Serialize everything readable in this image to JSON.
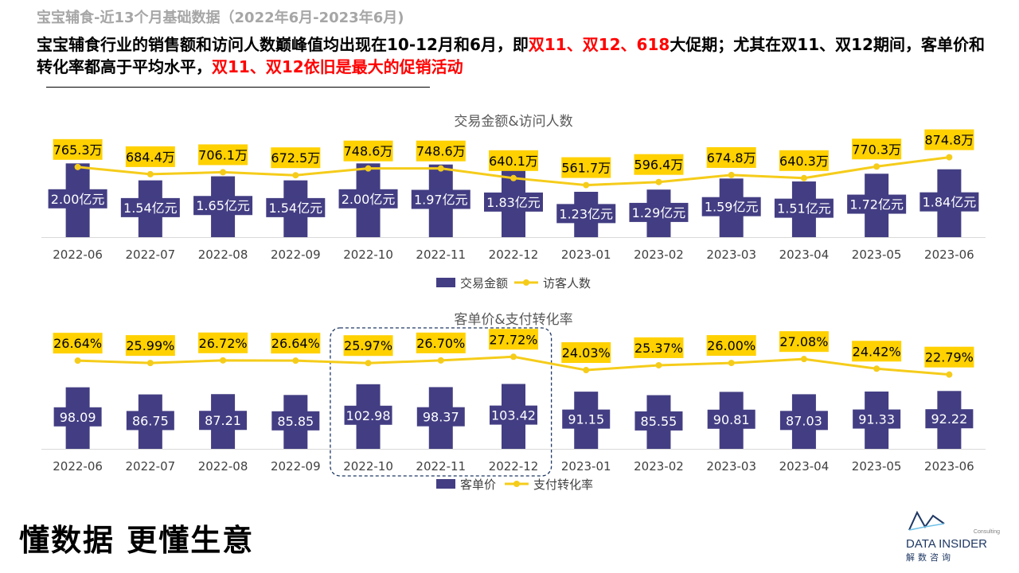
{
  "page": {
    "subtitle": "宝宝辅食-近13个月基础数据（2022年6月-2023年6月)",
    "headline": {
      "part1": "宝宝辅食行业的销售额和访问人数巅峰值均出现在10-12月和6月，即",
      "hl1": "双11、双12、618",
      "part2": "大促期；尤其在双11、双12期间，客单价和转化率都高于平均水平，",
      "hl2": "双11、双12依旧是最大的促销活动"
    },
    "slogan": "懂数据 更懂生意"
  },
  "logo": {
    "brand": "DATA INSIDER",
    "tagline": "Consulting",
    "cn": "解数咨询"
  },
  "colors": {
    "bar": "#433e83",
    "line": "#f5cc1a",
    "label_box": "#ffd100",
    "highlight": "#ff0000",
    "axis_text": "#404040",
    "logo": "#1f3864",
    "logo_accent": "#6fc0e8"
  },
  "chart_data": [
    {
      "type": "bar+line",
      "title": "交易金额&访问人数",
      "categories": [
        "2022-06",
        "2022-07",
        "2022-08",
        "2022-09",
        "2022-10",
        "2022-11",
        "2022-12",
        "2023-01",
        "2023-02",
        "2023-03",
        "2023-04",
        "2023-05",
        "2023-06"
      ],
      "series": [
        {
          "name": "交易金额",
          "type": "bar",
          "values": [
            2.0,
            1.54,
            1.65,
            1.54,
            2.0,
            1.97,
            1.83,
            1.23,
            1.29,
            1.59,
            1.51,
            1.72,
            1.84
          ],
          "labels": [
            "2.00亿元",
            "1.54亿元",
            "1.65亿元",
            "1.54亿元",
            "2.00亿元",
            "1.97亿元",
            "1.83亿元",
            "1.23亿元",
            "1.29亿元",
            "1.59亿元",
            "1.51亿元",
            "1.72亿元",
            "1.84亿元"
          ]
        },
        {
          "name": "访客人数",
          "type": "line",
          "values": [
            765.3,
            684.4,
            706.1,
            672.5,
            748.6,
            748.6,
            640.1,
            561.7,
            596.4,
            674.8,
            640.3,
            770.3,
            874.8
          ],
          "labels": [
            "765.3万",
            "684.4万",
            "706.1万",
            "672.5万",
            "748.6万",
            "748.6万",
            "640.1万",
            "561.7万",
            "596.4万",
            "674.8万",
            "640.3万",
            "770.3万",
            "874.8万"
          ]
        }
      ],
      "legend_position": "bottom"
    },
    {
      "type": "bar+line",
      "title": "客单价&支付转化率",
      "categories": [
        "2022-06",
        "2022-07",
        "2022-08",
        "2022-09",
        "2022-10",
        "2022-11",
        "2022-12",
        "2023-01",
        "2023-02",
        "2023-03",
        "2023-04",
        "2023-05",
        "2023-06"
      ],
      "series": [
        {
          "name": "客单价",
          "type": "bar",
          "values": [
            98.09,
            86.75,
            87.21,
            85.85,
            102.98,
            98.37,
            103.42,
            91.15,
            85.55,
            90.81,
            87.03,
            91.33,
            92.22
          ],
          "labels": [
            "98.09",
            "86.75",
            "87.21",
            "85.85",
            "102.98",
            "98.37",
            "103.42",
            "91.15",
            "85.55",
            "90.81",
            "87.03",
            "91.33",
            "92.22"
          ]
        },
        {
          "name": "支付转化率",
          "type": "line",
          "values": [
            26.64,
            25.99,
            26.72,
            26.64,
            25.97,
            26.7,
            27.72,
            24.03,
            25.37,
            26.0,
            27.08,
            24.42,
            22.79
          ],
          "labels": [
            "26.64%",
            "25.99%",
            "26.72%",
            "26.64%",
            "25.97%",
            "26.70%",
            "27.72%",
            "24.03%",
            "25.37%",
            "26.00%",
            "27.08%",
            "24.42%",
            "22.79%"
          ]
        }
      ],
      "highlight_range": [
        "2022-10",
        "2022-12"
      ],
      "legend_position": "bottom"
    }
  ]
}
